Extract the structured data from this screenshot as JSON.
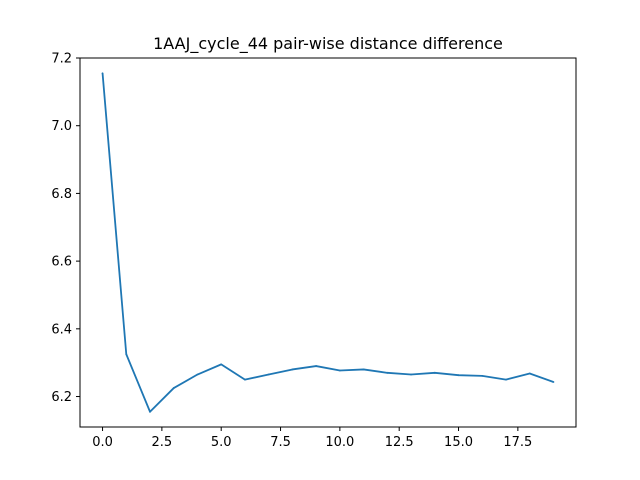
{
  "chart_data": {
    "type": "line",
    "title": "1AAJ_cycle_44 pair-wise distance difference",
    "xlabel": "",
    "ylabel": "",
    "xlim": [
      -0.95,
      19.95
    ],
    "ylim": [
      6.11,
      7.2
    ],
    "x_ticks": [
      0.0,
      2.5,
      5.0,
      7.5,
      10.0,
      12.5,
      15.0,
      17.5
    ],
    "x_tick_labels": [
      "0.0",
      "2.5",
      "5.0",
      "7.5",
      "10.0",
      "12.5",
      "15.0",
      "17.5"
    ],
    "y_ticks": [
      6.2,
      6.4,
      6.6,
      6.8,
      7.0,
      7.2
    ],
    "y_tick_labels": [
      "6.2",
      "6.4",
      "6.6",
      "6.8",
      "7.0",
      "7.2"
    ],
    "grid": false,
    "series": [
      {
        "color": "#1f77b4",
        "x": [
          0,
          1,
          2,
          3,
          4,
          5,
          6,
          7,
          8,
          9,
          10,
          11,
          12,
          13,
          14,
          15,
          16,
          17,
          18,
          19
        ],
        "y": [
          7.155,
          6.325,
          6.155,
          6.225,
          6.265,
          6.295,
          6.25,
          6.265,
          6.28,
          6.29,
          6.277,
          6.28,
          6.27,
          6.265,
          6.27,
          6.263,
          6.261,
          6.25,
          6.268,
          6.243
        ]
      }
    ]
  }
}
